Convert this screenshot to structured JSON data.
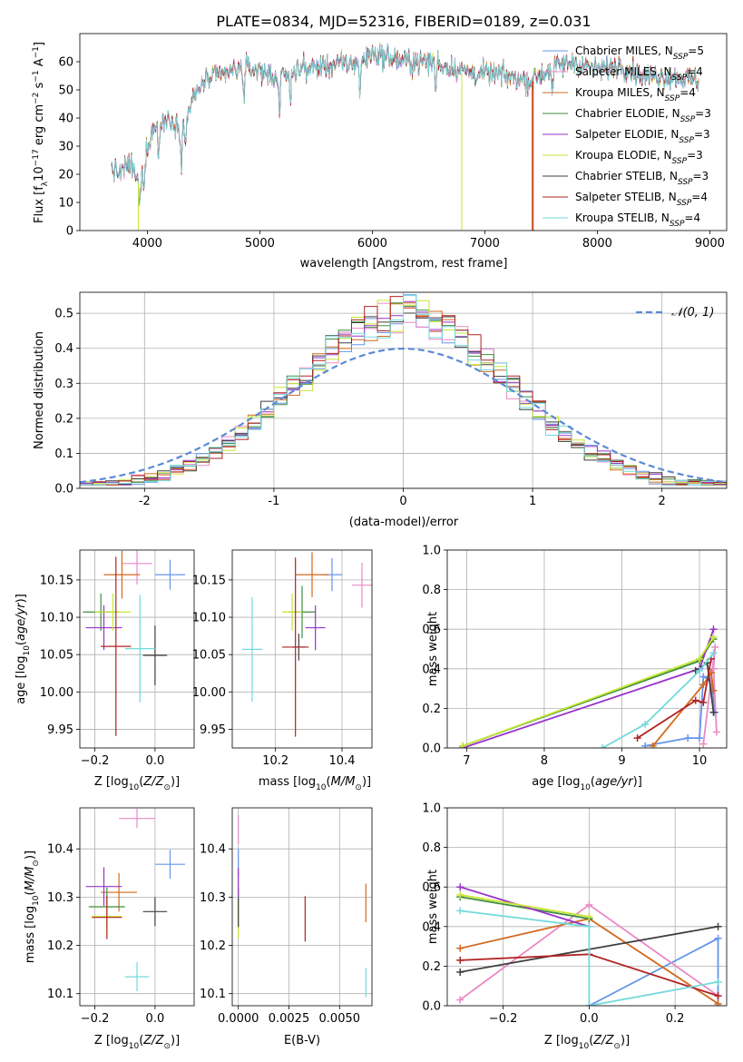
{
  "title": "PLATE=0834, MJD=52316, FIBERID=0189, z=0.031",
  "models": [
    {
      "name": "Chabrier MILES",
      "nssp": "5",
      "color": "#6495ed"
    },
    {
      "name": "Salpeter MILES",
      "nssp": "4",
      "color": "#e98ac6"
    },
    {
      "name": "Kroupa MILES",
      "nssp": "4",
      "color": "#d2691e"
    },
    {
      "name": "Chabrier ELODIE",
      "nssp": "3",
      "color": "#3e8e3e"
    },
    {
      "name": "Salpeter ELODIE",
      "nssp": "3",
      "color": "#9932cc"
    },
    {
      "name": "Kroupa ELODIE",
      "nssp": "3",
      "color": "#c8e632"
    },
    {
      "name": "Chabrier STELIB",
      "nssp": "3",
      "color": "#3f3f3f"
    },
    {
      "name": "Salpeter STELIB",
      "nssp": "4",
      "color": "#b22222"
    },
    {
      "name": "Kroupa STELIB",
      "nssp": "4",
      "color": "#73d9dc"
    }
  ],
  "chart_data": [
    {
      "id": "spectrum",
      "type": "line",
      "xlabel": "wavelength [Angstrom, rest frame]",
      "ylabel": "Flux [f_λ 10^-17 erg cm^-2 s^-1 A^-1]",
      "xlim": [
        3400,
        9150
      ],
      "ylim": [
        0,
        70
      ],
      "xticks": [
        4000,
        5000,
        6000,
        7000,
        8000,
        9000
      ],
      "yticks": [
        0,
        10,
        20,
        30,
        40,
        50,
        60
      ],
      "continuum": [
        [
          3680,
          22
        ],
        [
          3750,
          20
        ],
        [
          3850,
          24
        ],
        [
          3920,
          17
        ],
        [
          3980,
          27
        ],
        [
          4050,
          36
        ],
        [
          4200,
          40
        ],
        [
          4300,
          36
        ],
        [
          4400,
          46
        ],
        [
          4500,
          53
        ],
        [
          4700,
          56
        ],
        [
          4860,
          58
        ],
        [
          5000,
          57
        ],
        [
          5175,
          54
        ],
        [
          5300,
          57
        ],
        [
          5500,
          58
        ],
        [
          5700,
          59
        ],
        [
          5900,
          60
        ],
        [
          6000,
          63
        ],
        [
          6100,
          62
        ],
        [
          6300,
          60
        ],
        [
          6562,
          60
        ],
        [
          6600,
          59
        ],
        [
          6800,
          57
        ],
        [
          6900,
          56
        ],
        [
          7200,
          55
        ],
        [
          7400,
          53
        ],
        [
          7600,
          58
        ],
        [
          7800,
          60
        ],
        [
          8000,
          57
        ],
        [
          8200,
          59
        ],
        [
          8400,
          55
        ],
        [
          8600,
          55
        ],
        [
          8800,
          54
        ],
        [
          8900,
          53
        ]
      ],
      "grid": false
    },
    {
      "id": "residuals",
      "type": "histogram",
      "xlabel": "(data-model)/error",
      "ylabel": "Normed distribution",
      "xlim": [
        -2.5,
        2.5
      ],
      "ylim": [
        0,
        0.56
      ],
      "xticks": [
        -2,
        -1,
        0,
        1,
        2
      ],
      "yticks": [
        0,
        0.1,
        0.2,
        0.3,
        0.4,
        0.5
      ],
      "reference_label": "𝒩(0, 1)",
      "reference_color": "#5b8ad6",
      "grid": true
    },
    {
      "id": "age_vs_Z",
      "type": "scatter",
      "xlabel": "Z [log10(Z/Z☉)]",
      "ylabel": "age [log10(age/yr)]",
      "xlim": [
        -0.25,
        0.13
      ],
      "ylim": [
        9.925,
        10.19
      ],
      "xticks": [
        -0.2,
        0.0
      ],
      "yticks": [
        9.95,
        10.0,
        10.05,
        10.1,
        10.15
      ],
      "points": [
        {
          "x": 0.05,
          "y": 10.157,
          "xerr": 0.05,
          "yerr": 0.02
        },
        {
          "x": -0.06,
          "y": 10.172,
          "xerr": 0.05,
          "yerr": 0.028
        },
        {
          "x": -0.11,
          "y": 10.157,
          "xerr": 0.06,
          "yerr": 0.032
        },
        {
          "x": -0.18,
          "y": 10.107,
          "xerr": 0.06,
          "yerr": 0.025
        },
        {
          "x": -0.17,
          "y": 10.086,
          "xerr": 0.06,
          "yerr": 0.03
        },
        {
          "x": -0.14,
          "y": 10.107,
          "xerr": 0.06,
          "yerr": 0.025
        },
        {
          "x": 0.0,
          "y": 10.049,
          "xerr": 0.04,
          "yerr": 0.04
        },
        {
          "x": -0.13,
          "y": 10.061,
          "xerr": 0.05,
          "yerr": 0.12
        },
        {
          "x": -0.05,
          "y": 10.058,
          "xerr": 0.05,
          "yerr": 0.072
        }
      ],
      "grid": true
    },
    {
      "id": "age_vs_mass",
      "type": "scatter",
      "xlabel": "mass [log10(M/M☉)]",
      "ylabel": "",
      "xlim": [
        10.07,
        10.49
      ],
      "ylim": [
        9.925,
        10.19
      ],
      "xticks": [
        10.2,
        10.4
      ],
      "yticks": [
        9.95,
        10.0,
        10.05,
        10.1,
        10.15
      ],
      "points": [
        {
          "x": 10.37,
          "y": 10.157,
          "xerr": 0.03,
          "yerr": 0.022
        },
        {
          "x": 10.46,
          "y": 10.143,
          "xerr": 0.03,
          "yerr": 0.03
        },
        {
          "x": 10.31,
          "y": 10.157,
          "xerr": 0.05,
          "yerr": 0.03
        },
        {
          "x": 10.28,
          "y": 10.107,
          "xerr": 0.04,
          "yerr": 0.035
        },
        {
          "x": 10.32,
          "y": 10.086,
          "xerr": 0.03,
          "yerr": 0.03
        },
        {
          "x": 10.25,
          "y": 10.107,
          "xerr": 0.03,
          "yerr": 0.025
        },
        {
          "x": 10.27,
          "y": 10.06,
          "xerr": 0.02,
          "yerr": 0.018
        },
        {
          "x": 10.26,
          "y": 10.06,
          "xerr": 0.04,
          "yerr": 0.12
        },
        {
          "x": 10.13,
          "y": 10.057,
          "xerr": 0.03,
          "yerr": 0.07
        }
      ],
      "grid": true
    },
    {
      "id": "weight_vs_age",
      "type": "line",
      "xlabel": "age [log10(age/yr)]",
      "ylabel": "mass weight",
      "xlim": [
        6.75,
        10.35
      ],
      "ylim": [
        0,
        1
      ],
      "xticks": [
        7,
        8,
        9,
        10
      ],
      "yticks": [
        0,
        0.2,
        0.4,
        0.6,
        0.8,
        1.0
      ],
      "series": [
        [
          [
            9.3,
            0.01
          ],
          [
            9.85,
            0.05
          ],
          [
            10.0,
            0.05
          ],
          [
            10.05,
            0.36
          ],
          [
            10.15,
            0.34
          ],
          [
            10.2,
            0.18
          ]
        ],
        [
          [
            10.05,
            0.02
          ],
          [
            10.2,
            0.51
          ],
          [
            10.18,
            0.4
          ],
          [
            10.22,
            0.08
          ]
        ],
        [
          [
            9.4,
            0.01
          ],
          [
            10.05,
            0.32
          ],
          [
            10.15,
            0.38
          ],
          [
            10.18,
            0.29
          ]
        ],
        [
          [
            6.95,
            0.01
          ],
          [
            10.0,
            0.44
          ],
          [
            10.18,
            0.55
          ]
        ],
        [
          [
            6.95,
            0.0
          ],
          [
            10.0,
            0.4
          ],
          [
            10.18,
            0.6
          ]
        ],
        [
          [
            6.95,
            0.01
          ],
          [
            10.0,
            0.45
          ],
          [
            10.18,
            0.56
          ]
        ],
        [
          [
            9.95,
            0.39
          ],
          [
            10.1,
            0.43
          ],
          [
            10.18,
            0.18
          ]
        ],
        [
          [
            9.2,
            0.05
          ],
          [
            9.95,
            0.24
          ],
          [
            10.05,
            0.23
          ],
          [
            10.15,
            0.45
          ]
        ],
        [
          [
            8.75,
            0.0
          ],
          [
            9.3,
            0.12
          ],
          [
            10.0,
            0.39
          ],
          [
            10.18,
            0.48
          ]
        ]
      ],
      "grid": true
    },
    {
      "id": "mass_vs_Z",
      "type": "scatter",
      "xlabel": "Z [log10(Z/Z☉)]",
      "ylabel": "mass [log10(M/M☉)]",
      "xlim": [
        -0.25,
        0.13
      ],
      "ylim": [
        10.075,
        10.485
      ],
      "xticks": [
        -0.2,
        0.0
      ],
      "yticks": [
        10.1,
        10.2,
        10.3,
        10.4
      ],
      "points": [
        {
          "x": 0.05,
          "y": 10.368,
          "xerr": 0.05,
          "yerr": 0.03
        },
        {
          "x": -0.06,
          "y": 10.463,
          "xerr": 0.06,
          "yerr": 0.02
        },
        {
          "x": -0.12,
          "y": 10.31,
          "xerr": 0.06,
          "yerr": 0.04
        },
        {
          "x": -0.16,
          "y": 10.28,
          "xerr": 0.06,
          "yerr": 0.04
        },
        {
          "x": -0.17,
          "y": 10.322,
          "xerr": 0.06,
          "yerr": 0.04
        },
        {
          "x": -0.16,
          "y": 10.26,
          "xerr": 0.05,
          "yerr": 0.04
        },
        {
          "x": 0.0,
          "y": 10.27,
          "xerr": 0.04,
          "yerr": 0.03
        },
        {
          "x": -0.16,
          "y": 10.258,
          "xerr": 0.05,
          "yerr": 0.045
        },
        {
          "x": -0.06,
          "y": 10.135,
          "xerr": 0.04,
          "yerr": 0.03
        }
      ],
      "grid": true
    },
    {
      "id": "mass_vs_ebv",
      "type": "scatter",
      "xlabel": "E(B-V)",
      "ylabel": "",
      "xlim": [
        -0.0003,
        0.0066
      ],
      "ylim": [
        10.075,
        10.485
      ],
      "xticks": [
        0.0,
        0.0025,
        0.005
      ],
      "xticklabels": [
        "0.0000",
        "0.0025",
        "0.0050"
      ],
      "yticks": [
        10.1,
        10.2,
        10.3,
        10.4
      ],
      "points": [
        {
          "x": 0.0,
          "y": 10.37,
          "xerr": 0,
          "yerr": 0.03
        },
        {
          "x": 0.0,
          "y": 10.44,
          "xerr": 0,
          "yerr": 0.03
        },
        {
          "x": 0.0063,
          "y": 10.288,
          "xerr": 0,
          "yerr": 0.04
        },
        {
          "x": 0.0,
          "y": 10.28,
          "xerr": 0,
          "yerr": 0.04
        },
        {
          "x": 0.0,
          "y": 10.33,
          "xerr": 0,
          "yerr": 0.03
        },
        {
          "x": 0.0,
          "y": 10.255,
          "xerr": 0,
          "yerr": 0.04
        },
        {
          "x": 0.0,
          "y": 10.268,
          "xerr": 0,
          "yerr": 0.03
        },
        {
          "x": 0.0033,
          "y": 10.255,
          "xerr": 0,
          "yerr": 0.047
        },
        {
          "x": 0.0063,
          "y": 10.123,
          "xerr": 0,
          "yerr": 0.03
        }
      ],
      "grid": true
    },
    {
      "id": "weight_vs_Z",
      "type": "line",
      "xlabel": "Z [log10(Z/Z☉)]",
      "ylabel": "mass weight",
      "xlim": [
        -0.33,
        0.32
      ],
      "ylim": [
        0,
        1
      ],
      "xticks": [
        -0.2,
        0.0,
        0.2
      ],
      "yticks": [
        0,
        0.2,
        0.4,
        0.6,
        0.8,
        1.0
      ],
      "series": [
        [
          [
            0.0,
            0.0
          ],
          [
            0.3,
            0.34
          ],
          [
            0.3,
            0.0
          ]
        ],
        [
          [
            -0.3,
            0.03
          ],
          [
            0.0,
            0.51
          ],
          [
            0.3,
            0.05
          ]
        ],
        [
          [
            -0.3,
            0.29
          ],
          [
            0.0,
            0.44
          ],
          [
            0.3,
            0.01
          ]
        ],
        [
          [
            -0.3,
            0.55
          ],
          [
            0.0,
            0.44
          ]
        ],
        [
          [
            -0.3,
            0.6
          ],
          [
            0.0,
            0.4
          ]
        ],
        [
          [
            -0.3,
            0.56
          ],
          [
            0.0,
            0.45
          ]
        ],
        [
          [
            -0.3,
            0.17
          ],
          [
            0.3,
            0.4
          ]
        ],
        [
          [
            -0.3,
            0.23
          ],
          [
            0.0,
            0.26
          ],
          [
            0.3,
            0.05
          ]
        ],
        [
          [
            -0.3,
            0.48
          ],
          [
            0.0,
            0.4
          ],
          [
            0.0,
            0.0
          ],
          [
            0.3,
            0.12
          ]
        ]
      ],
      "grid": true
    }
  ]
}
